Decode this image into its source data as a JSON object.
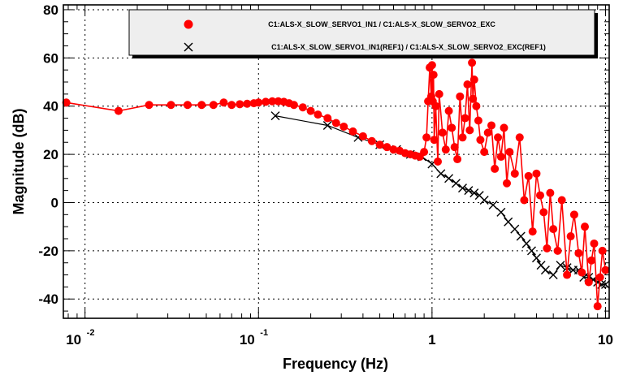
{
  "chart_data": {
    "type": "line",
    "xlabel": "Frequency (Hz)",
    "ylabel": "Magnitude (dB)",
    "xscale": "log",
    "xlim": [
      0.0075,
      10.5
    ],
    "ylim": [
      -48,
      82
    ],
    "grid": true,
    "legend_position": "top-right",
    "x_tick_labels": [
      {
        "value": 0.01,
        "base": "10",
        "exp": "-2"
      },
      {
        "value": 0.1,
        "base": "10",
        "exp": "-1"
      },
      {
        "value": 1,
        "base": "1",
        "exp": ""
      },
      {
        "value": 10,
        "base": "10",
        "exp": ""
      }
    ],
    "y_ticks": [
      80,
      60,
      40,
      20,
      0,
      -20,
      -40
    ],
    "series": [
      {
        "name": "C1:ALS-X_SLOW_SERVO1_IN1 / C1:ALS-X_SLOW_SERVO2_EXC",
        "color": "#ff0000",
        "marker": "circle",
        "x": [
          0.0078,
          0.0156,
          0.0234,
          0.0313,
          0.039,
          0.047,
          0.055,
          0.063,
          0.07,
          0.078,
          0.086,
          0.094,
          0.1,
          0.11,
          0.12,
          0.13,
          0.14,
          0.15,
          0.16,
          0.18,
          0.2,
          0.22,
          0.25,
          0.28,
          0.31,
          0.35,
          0.4,
          0.45,
          0.5,
          0.55,
          0.6,
          0.65,
          0.7,
          0.75,
          0.8,
          0.85,
          0.9,
          0.93,
          0.95,
          0.97,
          0.99,
          1.0,
          1.01,
          1.02,
          1.03,
          1.05,
          1.08,
          1.1,
          1.15,
          1.2,
          1.25,
          1.3,
          1.35,
          1.4,
          1.45,
          1.5,
          1.55,
          1.6,
          1.65,
          1.7,
          1.72,
          1.75,
          1.8,
          1.85,
          1.9,
          2.0,
          2.1,
          2.2,
          2.3,
          2.4,
          2.5,
          2.6,
          2.7,
          2.8,
          3.0,
          3.2,
          3.4,
          3.6,
          3.8,
          4.0,
          4.2,
          4.4,
          4.6,
          4.8,
          5.0,
          5.3,
          5.6,
          6.0,
          6.3,
          6.6,
          7.0,
          7.3,
          7.6,
          8.0,
          8.3,
          8.6,
          9.0,
          9.3,
          9.6,
          10.0
        ],
        "y": [
          41.5,
          38,
          40.5,
          40.5,
          40.5,
          40.5,
          40.5,
          41.5,
          40.5,
          40.8,
          41,
          41.2,
          41.5,
          41.8,
          42,
          42,
          41.8,
          41.2,
          40.5,
          39.5,
          38,
          36.5,
          35,
          33,
          31.5,
          29.5,
          27.5,
          25.5,
          24,
          23,
          22,
          21.5,
          20.5,
          20,
          19.5,
          19,
          21,
          27,
          42,
          56,
          44,
          57,
          42,
          53,
          26,
          40,
          17,
          45,
          29,
          22,
          38,
          31,
          23,
          18,
          44,
          27,
          35,
          49,
          30,
          58,
          43,
          51,
          40,
          34,
          26,
          21,
          29,
          32,
          14,
          27,
          19,
          31,
          8,
          21,
          12,
          27,
          1,
          11,
          -12,
          12,
          3,
          -4,
          -19,
          4,
          -11,
          -20,
          1,
          -30,
          -14,
          -5,
          -21,
          -29,
          -10,
          -33,
          -24,
          -17,
          -43,
          -31,
          -20,
          -28
        ]
      },
      {
        "name": "C1:ALS-X_SLOW_SERVO1_IN1(REF1) / C1:ALS-X_SLOW_SERVO2_EXC(REF1)",
        "color": "#000000",
        "marker": "x",
        "x": [
          0.125,
          0.25,
          0.375,
          0.5,
          0.625,
          0.75,
          0.875,
          1.0,
          1.125,
          1.25,
          1.375,
          1.5,
          1.625,
          1.75,
          1.875,
          2.0,
          2.25,
          2.5,
          2.75,
          3.0,
          3.25,
          3.5,
          3.75,
          4.0,
          4.25,
          4.5,
          5.0,
          5.5,
          6.0,
          6.5,
          7.0,
          7.5,
          8.0,
          8.5,
          9.0,
          9.5,
          10.0
        ],
        "y": [
          36,
          32,
          27,
          24,
          22,
          20,
          19,
          16,
          12,
          10,
          8,
          6,
          5,
          4,
          3,
          1,
          -1,
          -4,
          -8,
          -11,
          -14,
          -17,
          -20,
          -23,
          -26,
          -28,
          -30,
          -26,
          -27,
          -28,
          -28,
          -31,
          -31,
          -32,
          -33,
          -34,
          -34
        ]
      }
    ]
  }
}
